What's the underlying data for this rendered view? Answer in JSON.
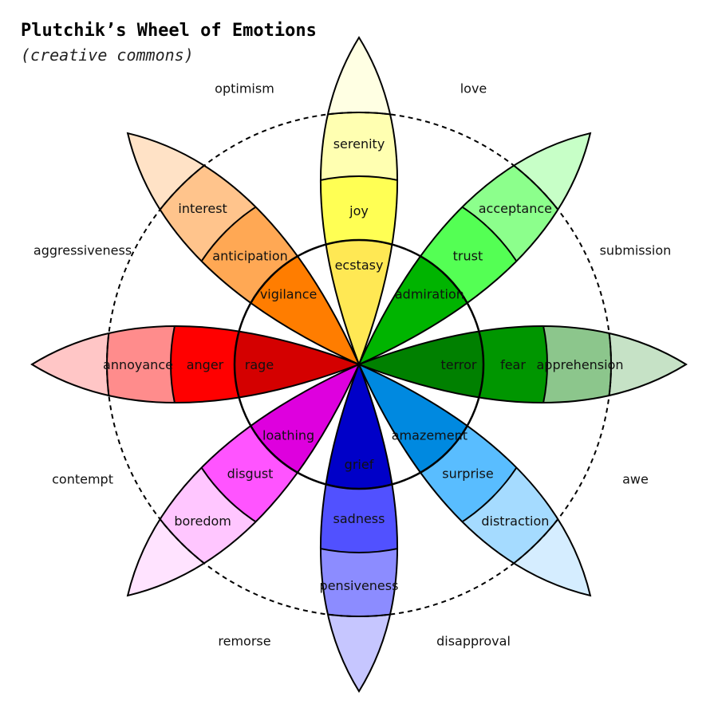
{
  "title": "Plutchik’s Wheel of Emotions",
  "subtitle": "(creative commons)",
  "petals": [
    {
      "id": "joy",
      "levels": [
        "ecstasy",
        "joy",
        "serenity"
      ],
      "colors": [
        "#ffe854",
        "#ffff54",
        "#ffffb1",
        "#ffffe3"
      ]
    },
    {
      "id": "trust",
      "levels": [
        "admiration",
        "trust",
        "acceptance"
      ],
      "colors": [
        "#00b400",
        "#54ff54",
        "#8cff8c",
        "#c7ffc7"
      ]
    },
    {
      "id": "fear",
      "levels": [
        "terror",
        "fear",
        "apprehension"
      ],
      "colors": [
        "#008000",
        "#009600",
        "#8cc68c",
        "#c6e2c6"
      ]
    },
    {
      "id": "surprise",
      "levels": [
        "amazement",
        "surprise",
        "distraction"
      ],
      "colors": [
        "#0089e0",
        "#59bdff",
        "#a5dbff",
        "#d5edff"
      ]
    },
    {
      "id": "sadness",
      "levels": [
        "grief",
        "sadness",
        "pensiveness"
      ],
      "colors": [
        "#0000c8",
        "#5151ff",
        "#8c8cff",
        "#c6c6ff"
      ]
    },
    {
      "id": "disgust",
      "levels": [
        "loathing",
        "disgust",
        "boredom"
      ],
      "colors": [
        "#de00de",
        "#ff54ff",
        "#ffc6ff",
        "#ffe3ff"
      ]
    },
    {
      "id": "anger",
      "levels": [
        "rage",
        "anger",
        "annoyance"
      ],
      "colors": [
        "#d40000",
        "#ff0000",
        "#ff8c8c",
        "#ffc6c6"
      ]
    },
    {
      "id": "anticipation",
      "levels": [
        "vigilance",
        "anticipation",
        "interest"
      ],
      "colors": [
        "#ff7d00",
        "#ffa854",
        "#ffc48c",
        "#ffe2c6"
      ]
    }
  ],
  "dyads": [
    "love",
    "submission",
    "awe",
    "disapproval",
    "remorse",
    "contempt",
    "aggressiveness",
    "optimism"
  ],
  "outline_color": "#000000"
}
